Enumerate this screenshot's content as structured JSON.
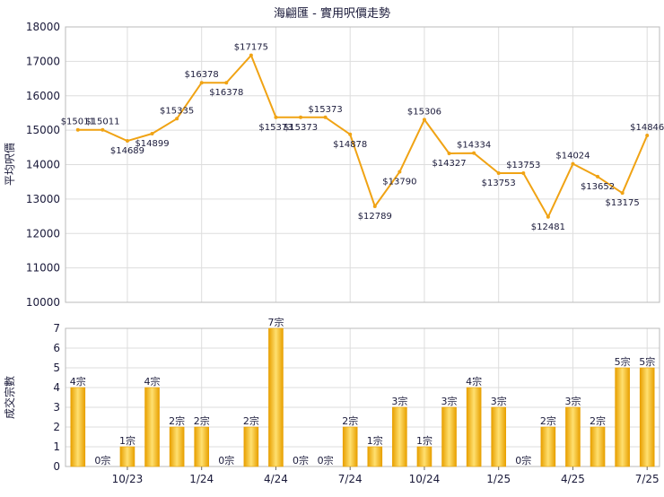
{
  "colors": {
    "line": "#f0a314",
    "bar_light": "#ffe070",
    "bar_dark": "#e8a000",
    "grid": "#dddddd",
    "axis": "#666666",
    "text": "#1a1a3a"
  },
  "chart_data": [
    {
      "type": "line",
      "title": "海翩匯 - 實用呎價走勢",
      "ylabel": "平均呎價",
      "ylim": [
        10000,
        18000
      ],
      "yticks": [
        10000,
        11000,
        12000,
        13000,
        14000,
        15000,
        16000,
        17000,
        18000
      ],
      "ytick_labels": [
        "10000",
        "11000",
        "12000",
        "13000",
        "14000",
        "15000",
        "16000",
        "17000",
        "18000"
      ],
      "grid": true,
      "series": [
        {
          "values": [
            15011,
            15011,
            14689,
            14899,
            15335,
            16378,
            16378,
            17175,
            15373,
            15373,
            15373,
            14878,
            12789,
            13790,
            15306,
            14327,
            14334,
            13753,
            13753,
            12481,
            14024,
            13652,
            13175,
            14846
          ],
          "labels": [
            "$15011",
            "$15011",
            "$14689",
            "$14899",
            "$15335",
            "$16378",
            "$16378",
            "$17175",
            "$15373",
            "$15373",
            "$15373",
            "$14878",
            "$12789",
            "$13790",
            "$15306",
            "$14327",
            "$14334",
            "$13753",
            "$13753",
            "$12481",
            "$14024",
            "$13652",
            "$13175",
            "$14846"
          ]
        }
      ]
    },
    {
      "type": "bar",
      "ylabel": "成交宗數",
      "ylim": [
        0,
        7
      ],
      "yticks": [
        0,
        1,
        2,
        3,
        4,
        5,
        6,
        7
      ],
      "ytick_labels": [
        "0",
        "1",
        "2",
        "3",
        "4",
        "5",
        "6",
        "7"
      ],
      "grid": true,
      "values": [
        4,
        0,
        1,
        4,
        2,
        2,
        0,
        2,
        7,
        0,
        0,
        2,
        1,
        3,
        1,
        3,
        4,
        3,
        0,
        2,
        3,
        2,
        5,
        5
      ],
      "labels": [
        "4宗",
        "0宗",
        "1宗",
        "4宗",
        "2宗",
        "2宗",
        "0宗",
        "2宗",
        "7宗",
        "0宗",
        "0宗",
        "2宗",
        "1宗",
        "3宗",
        "1宗",
        "3宗",
        "4宗",
        "3宗",
        "0宗",
        "2宗",
        "3宗",
        "2宗",
        "5宗",
        "5宗"
      ],
      "x_tick_labels": [
        {
          "index": 2,
          "label": "10/23"
        },
        {
          "index": 5,
          "label": "1/24"
        },
        {
          "index": 8,
          "label": "4/24"
        },
        {
          "index": 11,
          "label": "7/24"
        },
        {
          "index": 14,
          "label": "10/24"
        },
        {
          "index": 17,
          "label": "1/25"
        },
        {
          "index": 20,
          "label": "4/25"
        },
        {
          "index": 23,
          "label": "7/25"
        }
      ]
    }
  ]
}
